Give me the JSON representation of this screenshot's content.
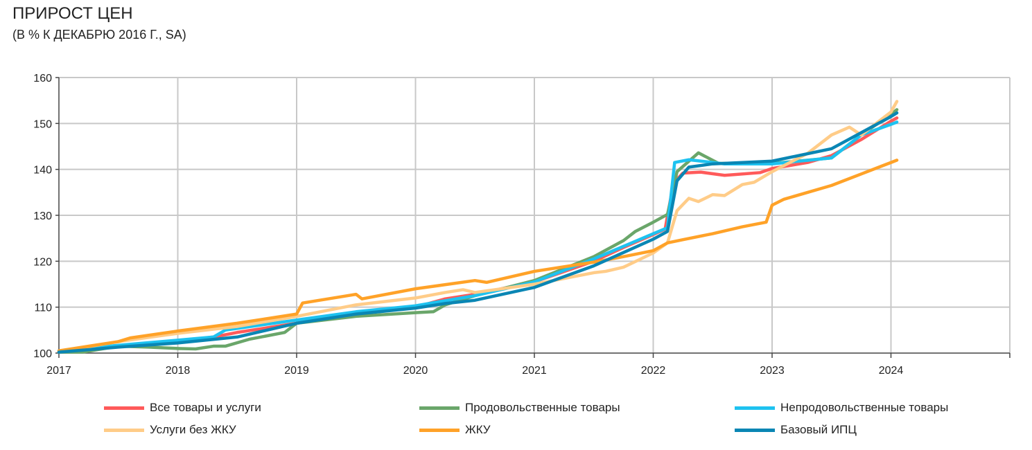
{
  "chart_data": {
    "type": "line",
    "title": "ПРИРОСТ ЦЕН",
    "subtitle": "(В % К ДЕКАБРЮ 2016 Г., SA)",
    "xlim": [
      2017,
      2025
    ],
    "ylim": [
      100,
      160
    ],
    "x_ticks": [
      "2017",
      "2018",
      "2019",
      "2020",
      "2021",
      "2022",
      "2023",
      "2024"
    ],
    "y_ticks": [
      "100",
      "110",
      "120",
      "130",
      "140",
      "150",
      "160"
    ],
    "grid": true,
    "legend_position": "bottom",
    "series": [
      {
        "name": "Все товары и услуги",
        "color": "#ff5a5a",
        "points": [
          [
            2017,
            100.3
          ],
          [
            2017.5,
            101.5
          ],
          [
            2018,
            102.5
          ],
          [
            2018.3,
            103.5
          ],
          [
            2018.5,
            104.5
          ],
          [
            2019,
            106.5
          ],
          [
            2019.5,
            108.5
          ],
          [
            2020,
            110
          ],
          [
            2020.25,
            111.8
          ],
          [
            2020.5,
            112.8
          ],
          [
            2021,
            115.5
          ],
          [
            2021.5,
            120
          ],
          [
            2021.75,
            123
          ],
          [
            2022,
            125.8
          ],
          [
            2022.1,
            127
          ],
          [
            2022.17,
            137
          ],
          [
            2022.25,
            139.2
          ],
          [
            2022.4,
            139.4
          ],
          [
            2022.6,
            138.7
          ],
          [
            2022.9,
            139.3
          ],
          [
            2023,
            140.2
          ],
          [
            2023.3,
            141.5
          ],
          [
            2023.5,
            143
          ],
          [
            2023.75,
            146.5
          ],
          [
            2024,
            150.5
          ],
          [
            2024.05,
            151.2
          ]
        ]
      },
      {
        "name": "Продовольственные товары",
        "color": "#6aa66a",
        "points": [
          [
            2017,
            100.2
          ],
          [
            2017.2,
            100.2
          ],
          [
            2017.5,
            101.5
          ],
          [
            2017.75,
            101.3
          ],
          [
            2018,
            101
          ],
          [
            2018.15,
            100.9
          ],
          [
            2018.3,
            101.5
          ],
          [
            2018.4,
            101.5
          ],
          [
            2018.6,
            103
          ],
          [
            2018.9,
            104.5
          ],
          [
            2019,
            106.5
          ],
          [
            2019.5,
            108
          ],
          [
            2020,
            108.8
          ],
          [
            2020.15,
            109
          ],
          [
            2020.25,
            110.5
          ],
          [
            2020.5,
            112.5
          ],
          [
            2021,
            115.8
          ],
          [
            2021.5,
            121
          ],
          [
            2021.75,
            124.5
          ],
          [
            2021.85,
            126.5
          ],
          [
            2022,
            128.5
          ],
          [
            2022.12,
            130.2
          ],
          [
            2022.2,
            139.5
          ],
          [
            2022.38,
            143.6
          ],
          [
            2022.55,
            141.3
          ],
          [
            2022.75,
            141.3
          ],
          [
            2023,
            141.3
          ],
          [
            2023.3,
            142
          ],
          [
            2023.5,
            142.5
          ],
          [
            2023.75,
            147.5
          ],
          [
            2024,
            152
          ],
          [
            2024.05,
            153
          ]
        ]
      },
      {
        "name": "Непродовольственные товары",
        "color": "#1ec2f0",
        "points": [
          [
            2017,
            100.5
          ],
          [
            2017.5,
            101.7
          ],
          [
            2018,
            102.8
          ],
          [
            2018.3,
            103.5
          ],
          [
            2018.4,
            105
          ],
          [
            2019,
            107.2
          ],
          [
            2019.5,
            109
          ],
          [
            2020,
            110.3
          ],
          [
            2020.5,
            112.5
          ],
          [
            2021,
            115.5
          ],
          [
            2021.5,
            120.5
          ],
          [
            2022,
            126
          ],
          [
            2022.12,
            127.3
          ],
          [
            2022.18,
            141.5
          ],
          [
            2022.3,
            142.1
          ],
          [
            2022.6,
            141.2
          ],
          [
            2023,
            141.2
          ],
          [
            2023.5,
            142.5
          ],
          [
            2023.75,
            147.5
          ],
          [
            2024,
            149.8
          ],
          [
            2024.05,
            150.3
          ]
        ]
      },
      {
        "name": "Услуги без ЖКУ",
        "color": "#ffcc88",
        "points": [
          [
            2017,
            100.3
          ],
          [
            2017.5,
            102.5
          ],
          [
            2018,
            104.3
          ],
          [
            2018.5,
            105.8
          ],
          [
            2019,
            108
          ],
          [
            2019.5,
            110.5
          ],
          [
            2020,
            112
          ],
          [
            2020.25,
            113.2
          ],
          [
            2020.4,
            113.8
          ],
          [
            2020.5,
            113.2
          ],
          [
            2021,
            115
          ],
          [
            2021.5,
            117.5
          ],
          [
            2021.6,
            117.8
          ],
          [
            2021.75,
            118.7
          ],
          [
            2022,
            121.8
          ],
          [
            2022.12,
            124
          ],
          [
            2022.2,
            131
          ],
          [
            2022.3,
            133.7
          ],
          [
            2022.38,
            133
          ],
          [
            2022.5,
            134.5
          ],
          [
            2022.6,
            134.3
          ],
          [
            2022.75,
            136.7
          ],
          [
            2022.85,
            137.2
          ],
          [
            2023,
            139.5
          ],
          [
            2023.3,
            143.5
          ],
          [
            2023.5,
            147.5
          ],
          [
            2023.65,
            149.2
          ],
          [
            2023.75,
            147.5
          ],
          [
            2024,
            152.5
          ],
          [
            2024.05,
            154.8
          ]
        ]
      },
      {
        "name": "ЖКУ",
        "color": "#ffa228",
        "points": [
          [
            2017,
            100.5
          ],
          [
            2017.5,
            102.5
          ],
          [
            2017.6,
            103.3
          ],
          [
            2018,
            104.8
          ],
          [
            2018.5,
            106.5
          ],
          [
            2019,
            108.5
          ],
          [
            2019.05,
            110.9
          ],
          [
            2019.5,
            112.8
          ],
          [
            2019.55,
            111.8
          ],
          [
            2020,
            114
          ],
          [
            2020.5,
            115.8
          ],
          [
            2020.6,
            115.4
          ],
          [
            2021,
            117.8
          ],
          [
            2021.5,
            119.8
          ],
          [
            2021.75,
            121
          ],
          [
            2022,
            122.3
          ],
          [
            2022.12,
            124
          ],
          [
            2022.25,
            124.7
          ],
          [
            2022.5,
            126
          ],
          [
            2022.75,
            127.5
          ],
          [
            2022.95,
            128.5
          ],
          [
            2023,
            132.2
          ],
          [
            2023.1,
            133.5
          ],
          [
            2023.5,
            136.5
          ],
          [
            2023.75,
            139
          ],
          [
            2024,
            141.5
          ],
          [
            2024.05,
            142
          ]
        ]
      },
      {
        "name": "Базовый ИПЦ",
        "color": "#0a86b4",
        "points": [
          [
            2017,
            100.2
          ],
          [
            2017.5,
            101.3
          ],
          [
            2018,
            102.2
          ],
          [
            2018.5,
            103.5
          ],
          [
            2019,
            106.5
          ],
          [
            2019.5,
            108.5
          ],
          [
            2020,
            109.8
          ],
          [
            2020.25,
            110.8
          ],
          [
            2020.5,
            111.5
          ],
          [
            2021,
            114.3
          ],
          [
            2021.5,
            119
          ],
          [
            2022,
            124.8
          ],
          [
            2022.12,
            126.5
          ],
          [
            2022.2,
            137.5
          ],
          [
            2022.3,
            140.5
          ],
          [
            2022.5,
            141.2
          ],
          [
            2023,
            141.8
          ],
          [
            2023.5,
            144.5
          ],
          [
            2023.75,
            148
          ],
          [
            2024,
            151.5
          ],
          [
            2024.05,
            152.3
          ]
        ]
      }
    ]
  }
}
